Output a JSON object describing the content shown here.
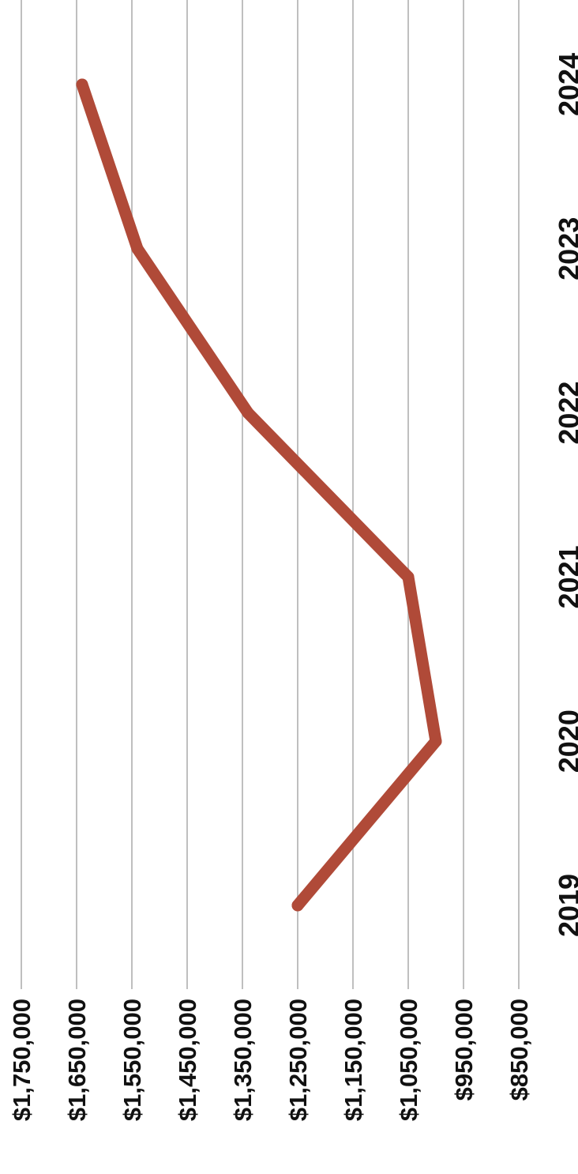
{
  "chart_data": {
    "type": "line",
    "orientation": "rotated-90",
    "title": "",
    "xlabel": "",
    "ylabel": "",
    "categories": [
      "2019",
      "2020",
      "2021",
      "2022",
      "2023",
      "2024"
    ],
    "series": [
      {
        "values": [
          1250000,
          1000000,
          1050000,
          1340000,
          1540000,
          1640000
        ]
      }
    ],
    "ylim": [
      850000,
      1750000
    ],
    "y_ticks": [
      1750000,
      1650000,
      1550000,
      1450000,
      1350000,
      1250000,
      1150000,
      1050000,
      950000,
      850000
    ],
    "y_tick_labels": [
      "$1,750,000",
      "$1,650,000",
      "$1,550,000",
      "$1,450,000",
      "$1,350,000",
      "$1,250,000",
      "$1,150,000",
      "$1,050,000",
      "$950,000",
      "$850,000"
    ],
    "grid": true,
    "legend": "none",
    "colors": {
      "line": "#b04a38",
      "grid": "#bfbfbf",
      "text": "#111111"
    }
  }
}
